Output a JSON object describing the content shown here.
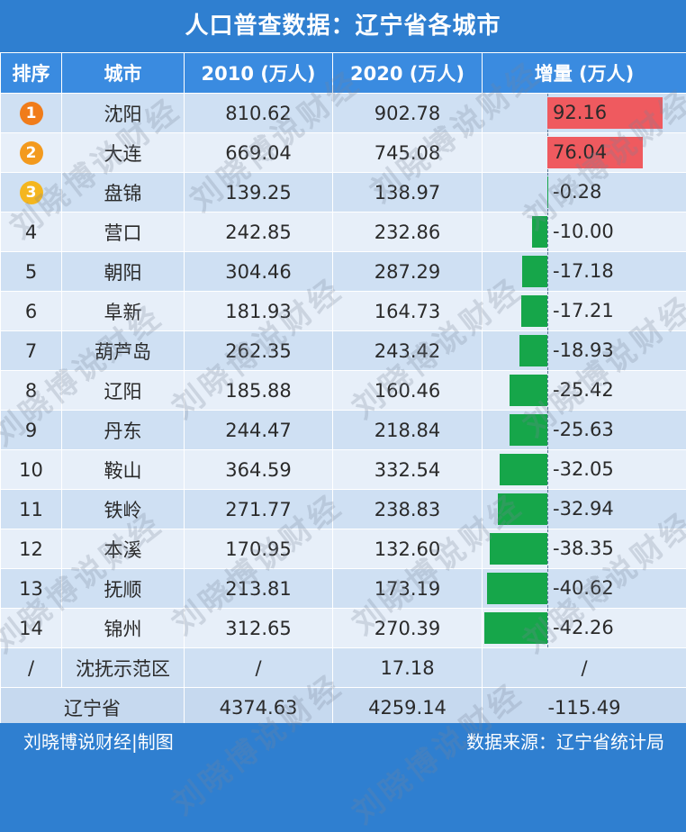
{
  "title": "人口普查数据：辽宁省各城市",
  "headers": {
    "rank": "排序",
    "city": "城市",
    "y2010": "2010 (万人)",
    "y2020": "2020 (万人)",
    "inc": "增量 (万人)"
  },
  "chart_data": {
    "type": "table",
    "rows": [
      {
        "rank": "1",
        "city": "沈阳",
        "y2010": "810.62",
        "y2020": "902.78",
        "inc": "92.16",
        "inc_value": 92.16
      },
      {
        "rank": "2",
        "city": "大连",
        "y2010": "669.04",
        "y2020": "745.08",
        "inc": "76.04",
        "inc_value": 76.04
      },
      {
        "rank": "3",
        "city": "盘锦",
        "y2010": "139.25",
        "y2020": "138.97",
        "inc": "-0.28",
        "inc_value": -0.28
      },
      {
        "rank": "4",
        "city": "营口",
        "y2010": "242.85",
        "y2020": "232.86",
        "inc": "-10.00",
        "inc_value": -10.0
      },
      {
        "rank": "5",
        "city": "朝阳",
        "y2010": "304.46",
        "y2020": "287.29",
        "inc": "-17.18",
        "inc_value": -17.18
      },
      {
        "rank": "6",
        "city": "阜新",
        "y2010": "181.93",
        "y2020": "164.73",
        "inc": "-17.21",
        "inc_value": -17.21
      },
      {
        "rank": "7",
        "city": "葫芦岛",
        "y2010": "262.35",
        "y2020": "243.42",
        "inc": "-18.93",
        "inc_value": -18.93
      },
      {
        "rank": "8",
        "city": "辽阳",
        "y2010": "185.88",
        "y2020": "160.46",
        "inc": "-25.42",
        "inc_value": -25.42
      },
      {
        "rank": "9",
        "city": "丹东",
        "y2010": "244.47",
        "y2020": "218.84",
        "inc": "-25.63",
        "inc_value": -25.63
      },
      {
        "rank": "10",
        "city": "鞍山",
        "y2010": "364.59",
        "y2020": "332.54",
        "inc": "-32.05",
        "inc_value": -32.05
      },
      {
        "rank": "11",
        "city": "铁岭",
        "y2010": "271.77",
        "y2020": "238.83",
        "inc": "-32.94",
        "inc_value": -32.94
      },
      {
        "rank": "12",
        "city": "本溪",
        "y2010": "170.95",
        "y2020": "132.60",
        "inc": "-38.35",
        "inc_value": -38.35
      },
      {
        "rank": "13",
        "city": "抚顺",
        "y2010": "213.81",
        "y2020": "173.19",
        "inc": "-40.62",
        "inc_value": -40.62
      },
      {
        "rank": "14",
        "city": "锦州",
        "y2010": "312.65",
        "y2020": "270.39",
        "inc": "-42.26",
        "inc_value": -42.26
      }
    ],
    "special_row": {
      "rank": "/",
      "city": "沈抚示范区",
      "y2010": "/",
      "y2020": "17.18",
      "inc": "/"
    },
    "total_row": {
      "city": "辽宁省",
      "y2010": "4374.63",
      "y2020": "4259.14",
      "inc": "-115.49"
    },
    "bar_range": [
      -42.26,
      92.16
    ],
    "colors": {
      "positive": "#ef5a5f",
      "negative": "#16a64a",
      "badge_1": "#f07c1a",
      "badge_2": "#f39a1e",
      "badge_3": "#f4b61f"
    }
  },
  "footer": {
    "left": "刘晓博说财经|制图",
    "right": "数据来源：辽宁省统计局"
  },
  "watermark": "刘晓博说财经"
}
